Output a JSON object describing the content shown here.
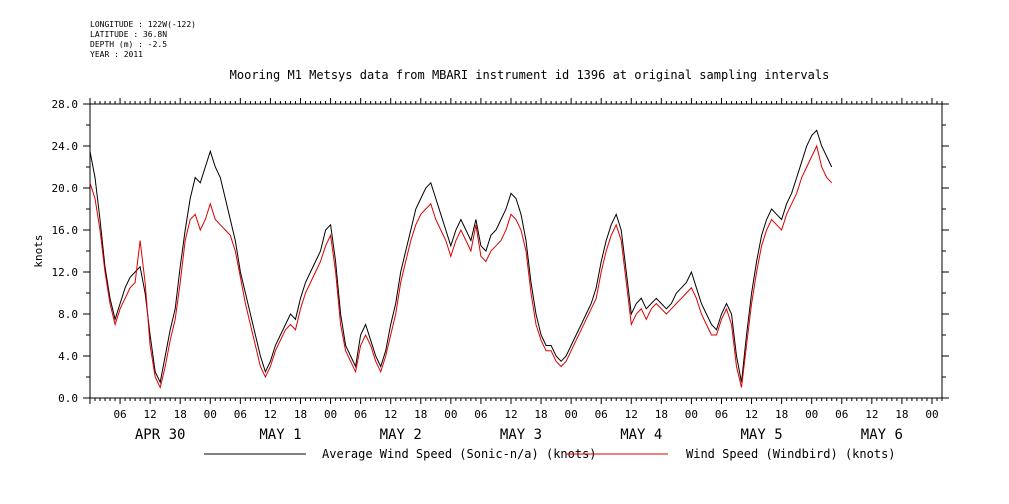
{
  "header": {
    "longitude": "LONGITUDE : 122W(-122)",
    "latitude": "LATITUDE : 36.8N",
    "depth": "DEPTH (m) : -2.5",
    "year": "YEAR : 2011"
  },
  "chart_data": {
    "type": "line",
    "title": "Mooring M1 Metsys data from MBARI instrument id 1396 at original sampling intervals",
    "ylabel": "knots",
    "xlabel": "",
    "ylim": [
      0,
      28
    ],
    "yticks": [
      "0.0",
      "4.0",
      "8.0",
      "12.0",
      "16.0",
      "20.0",
      "24.0",
      "28.0"
    ],
    "xlim_hours": [
      0,
      170
    ],
    "hour_tick_labels": [
      "06",
      "12",
      "18",
      "00",
      "06",
      "12",
      "18",
      "00",
      "06",
      "12",
      "18",
      "00",
      "06",
      "12",
      "18",
      "00",
      "06",
      "12",
      "18",
      "00",
      "06",
      "12",
      "18",
      "00",
      "06",
      "12",
      "18",
      "00"
    ],
    "day_labels": [
      "APR 30",
      "MAY  1",
      "MAY  2",
      "MAY  3",
      "MAY  4",
      "MAY  5",
      "MAY  6"
    ],
    "grid": false,
    "legend_position": "bottom",
    "colors": {
      "series1": "#000000",
      "series2": "#dd0000"
    },
    "series": [
      {
        "name": "Average Wind Speed (Sonic-n/a) (knots)",
        "points": [
          [
            0,
            23.5
          ],
          [
            1,
            21
          ],
          [
            2,
            17
          ],
          [
            3,
            12.5
          ],
          [
            4,
            9.5
          ],
          [
            5,
            7.5
          ],
          [
            6,
            9
          ],
          [
            7,
            10.5
          ],
          [
            8,
            11.5
          ],
          [
            9,
            12
          ],
          [
            10,
            12.5
          ],
          [
            11,
            10
          ],
          [
            12,
            6
          ],
          [
            13,
            2.5
          ],
          [
            14,
            1.5
          ],
          [
            15,
            4
          ],
          [
            16,
            6.5
          ],
          [
            17,
            8.5
          ],
          [
            18,
            12.5
          ],
          [
            19,
            16
          ],
          [
            20,
            19
          ],
          [
            21,
            21
          ],
          [
            22,
            20.5
          ],
          [
            23,
            22
          ],
          [
            24,
            23.5
          ],
          [
            25,
            22
          ],
          [
            26,
            21
          ],
          [
            27,
            19
          ],
          [
            28,
            17
          ],
          [
            29,
            15
          ],
          [
            30,
            12
          ],
          [
            31,
            10
          ],
          [
            32,
            8
          ],
          [
            33,
            6
          ],
          [
            34,
            4
          ],
          [
            35,
            2.5
          ],
          [
            36,
            3.5
          ],
          [
            37,
            5
          ],
          [
            38,
            6
          ],
          [
            39,
            7
          ],
          [
            40,
            8
          ],
          [
            41,
            7.5
          ],
          [
            42,
            9.5
          ],
          [
            43,
            11
          ],
          [
            44,
            12
          ],
          [
            45,
            13
          ],
          [
            46,
            14
          ],
          [
            47,
            16
          ],
          [
            48,
            16.5
          ],
          [
            49,
            13
          ],
          [
            50,
            8
          ],
          [
            51,
            5
          ],
          [
            52,
            4
          ],
          [
            53,
            3
          ],
          [
            54,
            6
          ],
          [
            55,
            7
          ],
          [
            56,
            5.5
          ],
          [
            57,
            4
          ],
          [
            58,
            3
          ],
          [
            59,
            4.5
          ],
          [
            60,
            7
          ],
          [
            61,
            9
          ],
          [
            62,
            12
          ],
          [
            63,
            14
          ],
          [
            64,
            16
          ],
          [
            65,
            18
          ],
          [
            66,
            19
          ],
          [
            67,
            20
          ],
          [
            68,
            20.5
          ],
          [
            69,
            19
          ],
          [
            70,
            17.5
          ],
          [
            71,
            16
          ],
          [
            72,
            14.5
          ],
          [
            73,
            16
          ],
          [
            74,
            17
          ],
          [
            75,
            16
          ],
          [
            76,
            15
          ],
          [
            77,
            17
          ],
          [
            78,
            14.5
          ],
          [
            79,
            14
          ],
          [
            80,
            15.5
          ],
          [
            81,
            16
          ],
          [
            82,
            17
          ],
          [
            83,
            18
          ],
          [
            84,
            19.5
          ],
          [
            85,
            19
          ],
          [
            86,
            17.5
          ],
          [
            87,
            15
          ],
          [
            88,
            11
          ],
          [
            89,
            8
          ],
          [
            90,
            6
          ],
          [
            91,
            5
          ],
          [
            92,
            5
          ],
          [
            93,
            4
          ],
          [
            94,
            3.5
          ],
          [
            95,
            4
          ],
          [
            96,
            5
          ],
          [
            97,
            6
          ],
          [
            98,
            7
          ],
          [
            99,
            8
          ],
          [
            100,
            9
          ],
          [
            101,
            10.5
          ],
          [
            102,
            13
          ],
          [
            103,
            15
          ],
          [
            104,
            16.5
          ],
          [
            105,
            17.5
          ],
          [
            106,
            16
          ],
          [
            107,
            12
          ],
          [
            108,
            8
          ],
          [
            109,
            9
          ],
          [
            110,
            9.5
          ],
          [
            111,
            8.5
          ],
          [
            112,
            9
          ],
          [
            113,
            9.5
          ],
          [
            114,
            9
          ],
          [
            115,
            8.5
          ],
          [
            116,
            9
          ],
          [
            117,
            10
          ],
          [
            118,
            10.5
          ],
          [
            119,
            11
          ],
          [
            120,
            12
          ],
          [
            121,
            10.5
          ],
          [
            122,
            9
          ],
          [
            123,
            8
          ],
          [
            124,
            7
          ],
          [
            125,
            6.5
          ],
          [
            126,
            8
          ],
          [
            127,
            9
          ],
          [
            128,
            8
          ],
          [
            129,
            4
          ],
          [
            130,
            1.5
          ],
          [
            131,
            6
          ],
          [
            132,
            10
          ],
          [
            133,
            13
          ],
          [
            134,
            15.5
          ],
          [
            135,
            17
          ],
          [
            136,
            18
          ],
          [
            137,
            17.5
          ],
          [
            138,
            17
          ],
          [
            139,
            18.5
          ],
          [
            140,
            19.5
          ],
          [
            141,
            21
          ],
          [
            142,
            22.5
          ],
          [
            143,
            24
          ],
          [
            144,
            25
          ],
          [
            145,
            25.5
          ],
          [
            146,
            24
          ],
          [
            147,
            23
          ],
          [
            148,
            22
          ]
        ]
      },
      {
        "name": "Wind Speed (Windbird) (knots)",
        "points": [
          [
            0,
            20.5
          ],
          [
            1,
            19
          ],
          [
            2,
            16
          ],
          [
            3,
            12
          ],
          [
            4,
            9
          ],
          [
            5,
            7
          ],
          [
            6,
            8.5
          ],
          [
            7,
            9.5
          ],
          [
            8,
            10.5
          ],
          [
            9,
            11
          ],
          [
            10,
            15
          ],
          [
            11,
            11
          ],
          [
            12,
            5
          ],
          [
            13,
            2
          ],
          [
            14,
            1
          ],
          [
            15,
            3
          ],
          [
            16,
            5.5
          ],
          [
            17,
            7.5
          ],
          [
            18,
            11
          ],
          [
            19,
            15
          ],
          [
            20,
            17
          ],
          [
            21,
            17.5
          ],
          [
            22,
            16
          ],
          [
            23,
            17
          ],
          [
            24,
            18.5
          ],
          [
            25,
            17
          ],
          [
            26,
            16.5
          ],
          [
            27,
            16
          ],
          [
            28,
            15.5
          ],
          [
            29,
            14
          ],
          [
            30,
            11.5
          ],
          [
            31,
            9
          ],
          [
            32,
            7
          ],
          [
            33,
            5
          ],
          [
            34,
            3
          ],
          [
            35,
            2
          ],
          [
            36,
            3
          ],
          [
            37,
            4.5
          ],
          [
            38,
            5.5
          ],
          [
            39,
            6.5
          ],
          [
            40,
            7
          ],
          [
            41,
            6.5
          ],
          [
            42,
            8.5
          ],
          [
            43,
            10
          ],
          [
            44,
            11
          ],
          [
            45,
            12
          ],
          [
            46,
            13
          ],
          [
            47,
            14.5
          ],
          [
            48,
            15.5
          ],
          [
            49,
            12
          ],
          [
            50,
            7
          ],
          [
            51,
            4.5
          ],
          [
            52,
            3.5
          ],
          [
            53,
            2.5
          ],
          [
            54,
            5
          ],
          [
            55,
            6
          ],
          [
            56,
            5
          ],
          [
            57,
            3.5
          ],
          [
            58,
            2.5
          ],
          [
            59,
            4
          ],
          [
            60,
            6
          ],
          [
            61,
            8
          ],
          [
            62,
            11
          ],
          [
            63,
            13
          ],
          [
            64,
            15
          ],
          [
            65,
            16.5
          ],
          [
            66,
            17.5
          ],
          [
            67,
            18
          ],
          [
            68,
            18.5
          ],
          [
            69,
            17
          ],
          [
            70,
            16
          ],
          [
            71,
            15
          ],
          [
            72,
            13.5
          ],
          [
            73,
            15
          ],
          [
            74,
            16
          ],
          [
            75,
            15
          ],
          [
            76,
            14
          ],
          [
            77,
            16.5
          ],
          [
            78,
            13.5
          ],
          [
            79,
            13
          ],
          [
            80,
            14
          ],
          [
            81,
            14.5
          ],
          [
            82,
            15
          ],
          [
            83,
            16
          ],
          [
            84,
            17.5
          ],
          [
            85,
            17
          ],
          [
            86,
            16
          ],
          [
            87,
            14
          ],
          [
            88,
            10
          ],
          [
            89,
            7
          ],
          [
            90,
            5.5
          ],
          [
            91,
            4.5
          ],
          [
            92,
            4.5
          ],
          [
            93,
            3.5
          ],
          [
            94,
            3
          ],
          [
            95,
            3.5
          ],
          [
            96,
            4.5
          ],
          [
            97,
            5.5
          ],
          [
            98,
            6.5
          ],
          [
            99,
            7.5
          ],
          [
            100,
            8.5
          ],
          [
            101,
            9.5
          ],
          [
            102,
            12
          ],
          [
            103,
            14
          ],
          [
            104,
            15.5
          ],
          [
            105,
            16.5
          ],
          [
            106,
            15
          ],
          [
            107,
            11
          ],
          [
            108,
            7
          ],
          [
            109,
            8
          ],
          [
            110,
            8.5
          ],
          [
            111,
            7.5
          ],
          [
            112,
            8.5
          ],
          [
            113,
            9
          ],
          [
            114,
            8.5
          ],
          [
            115,
            8
          ],
          [
            116,
            8.5
          ],
          [
            117,
            9
          ],
          [
            118,
            9.5
          ],
          [
            119,
            10
          ],
          [
            120,
            10.5
          ],
          [
            121,
            9.5
          ],
          [
            122,
            8
          ],
          [
            123,
            7
          ],
          [
            124,
            6
          ],
          [
            125,
            6
          ],
          [
            126,
            7.5
          ],
          [
            127,
            8.5
          ],
          [
            128,
            7
          ],
          [
            129,
            3
          ],
          [
            130,
            1
          ],
          [
            131,
            5
          ],
          [
            132,
            9
          ],
          [
            133,
            12
          ],
          [
            134,
            14.5
          ],
          [
            135,
            16
          ],
          [
            136,
            17
          ],
          [
            137,
            16.5
          ],
          [
            138,
            16
          ],
          [
            139,
            17.5
          ],
          [
            140,
            18.5
          ],
          [
            141,
            19.5
          ],
          [
            142,
            21
          ],
          [
            143,
            22
          ],
          [
            144,
            23
          ],
          [
            145,
            24
          ],
          [
            146,
            22
          ],
          [
            147,
            21
          ],
          [
            148,
            20.5
          ]
        ]
      }
    ]
  }
}
